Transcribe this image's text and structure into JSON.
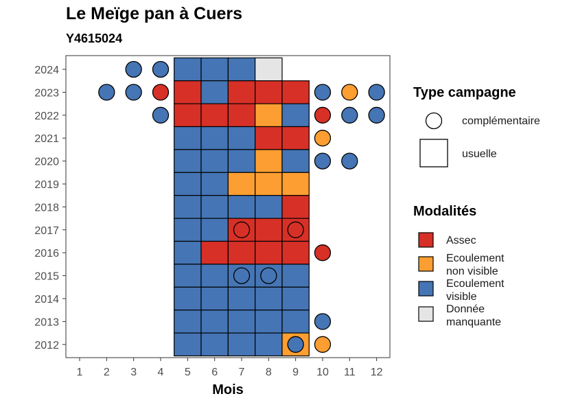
{
  "title": "Le Meïge pan à Cuers",
  "subtitle": "Y4615024",
  "colors": {
    "Assec": "#d73027",
    "Ecoulement non visible": "#fc9e31",
    "Ecoulement visible": "#4575b4",
    "Donnée manquante": "#e5e5e5"
  },
  "legend": {
    "campagne_title": "Type campagne",
    "campagne_items": [
      "complémentaire",
      "usuelle"
    ],
    "modalites_title": "Modalités",
    "modalites_items": [
      {
        "key": "Assec",
        "lines": [
          "Assec"
        ]
      },
      {
        "key": "Ecoulement non visible",
        "lines": [
          "Ecoulement",
          "non visible"
        ]
      },
      {
        "key": "Ecoulement visible",
        "lines": [
          "Ecoulement",
          "visible"
        ]
      },
      {
        "key": "Donnée manquante",
        "lines": [
          "Donnée",
          "manquante"
        ]
      }
    ]
  },
  "chart_data": {
    "type": "heatmap",
    "xlabel": "Mois",
    "ylabel": "",
    "x_ticks": [
      1,
      2,
      3,
      4,
      5,
      6,
      7,
      8,
      9,
      10,
      11,
      12
    ],
    "y_ticks": [
      2012,
      2013,
      2014,
      2015,
      2016,
      2017,
      2018,
      2019,
      2020,
      2021,
      2022,
      2023,
      2024
    ],
    "usuelle": [
      {
        "year": 2024,
        "values": {
          "5": "Ecoulement visible",
          "6": "Ecoulement visible",
          "7": "Ecoulement visible",
          "8": "Donnée manquante"
        }
      },
      {
        "year": 2023,
        "values": {
          "5": "Assec",
          "6": "Ecoulement visible",
          "7": "Assec",
          "8": "Assec",
          "9": "Assec"
        }
      },
      {
        "year": 2022,
        "values": {
          "5": "Assec",
          "6": "Assec",
          "7": "Assec",
          "8": "Ecoulement non visible",
          "9": "Ecoulement visible"
        }
      },
      {
        "year": 2021,
        "values": {
          "5": "Ecoulement visible",
          "6": "Ecoulement visible",
          "7": "Ecoulement visible",
          "8": "Assec",
          "9": "Assec"
        }
      },
      {
        "year": 2020,
        "values": {
          "5": "Ecoulement visible",
          "6": "Ecoulement visible",
          "7": "Ecoulement visible",
          "8": "Ecoulement non visible",
          "9": "Ecoulement visible"
        }
      },
      {
        "year": 2019,
        "values": {
          "5": "Ecoulement visible",
          "6": "Ecoulement visible",
          "7": "Ecoulement non visible",
          "8": "Ecoulement non visible",
          "9": "Ecoulement non visible"
        }
      },
      {
        "year": 2018,
        "values": {
          "5": "Ecoulement visible",
          "6": "Ecoulement visible",
          "7": "Ecoulement visible",
          "8": "Ecoulement visible",
          "9": "Assec"
        }
      },
      {
        "year": 2017,
        "values": {
          "5": "Ecoulement visible",
          "6": "Ecoulement visible",
          "7": "Assec",
          "8": "Assec",
          "9": "Assec"
        }
      },
      {
        "year": 2016,
        "values": {
          "5": "Ecoulement visible",
          "6": "Assec",
          "7": "Assec",
          "8": "Assec",
          "9": "Assec"
        }
      },
      {
        "year": 2015,
        "values": {
          "5": "Ecoulement visible",
          "6": "Ecoulement visible",
          "7": "Ecoulement visible",
          "8": "Ecoulement visible",
          "9": "Ecoulement visible"
        }
      },
      {
        "year": 2014,
        "values": {
          "5": "Ecoulement visible",
          "6": "Ecoulement visible",
          "7": "Ecoulement visible",
          "8": "Ecoulement visible",
          "9": "Ecoulement visible"
        }
      },
      {
        "year": 2013,
        "values": {
          "5": "Ecoulement visible",
          "6": "Ecoulement visible",
          "7": "Ecoulement visible",
          "8": "Ecoulement visible",
          "9": "Ecoulement visible"
        }
      },
      {
        "year": 2012,
        "values": {
          "5": "Ecoulement visible",
          "6": "Ecoulement visible",
          "7": "Ecoulement visible",
          "8": "Ecoulement visible",
          "9": "Ecoulement non visible"
        }
      }
    ],
    "complementaire": [
      {
        "year": 2024,
        "month": 3,
        "value": "Ecoulement visible"
      },
      {
        "year": 2024,
        "month": 4,
        "value": "Ecoulement visible"
      },
      {
        "year": 2023,
        "month": 2,
        "value": "Ecoulement visible"
      },
      {
        "year": 2023,
        "month": 3,
        "value": "Ecoulement visible"
      },
      {
        "year": 2023,
        "month": 4,
        "value": "Assec"
      },
      {
        "year": 2023,
        "month": 10,
        "value": "Ecoulement visible"
      },
      {
        "year": 2023,
        "month": 11,
        "value": "Ecoulement non visible"
      },
      {
        "year": 2023,
        "month": 12,
        "value": "Ecoulement visible"
      },
      {
        "year": 2022,
        "month": 4,
        "value": "Ecoulement visible"
      },
      {
        "year": 2022,
        "month": 10,
        "value": "Assec"
      },
      {
        "year": 2022,
        "month": 11,
        "value": "Ecoulement visible"
      },
      {
        "year": 2022,
        "month": 12,
        "value": "Ecoulement visible"
      },
      {
        "year": 2021,
        "month": 10,
        "value": "Ecoulement non visible"
      },
      {
        "year": 2020,
        "month": 10,
        "value": "Ecoulement visible"
      },
      {
        "year": 2020,
        "month": 11,
        "value": "Ecoulement visible"
      },
      {
        "year": 2017,
        "month": 7,
        "value": "Assec"
      },
      {
        "year": 2017,
        "month": 9,
        "value": "Assec"
      },
      {
        "year": 2016,
        "month": 10,
        "value": "Assec"
      },
      {
        "year": 2015,
        "month": 7,
        "value": "Ecoulement visible"
      },
      {
        "year": 2015,
        "month": 8,
        "value": "Ecoulement visible"
      },
      {
        "year": 2013,
        "month": 10,
        "value": "Ecoulement visible"
      },
      {
        "year": 2012,
        "month": 9,
        "value": "Ecoulement visible"
      },
      {
        "year": 2012,
        "month": 10,
        "value": "Ecoulement non visible"
      }
    ]
  }
}
